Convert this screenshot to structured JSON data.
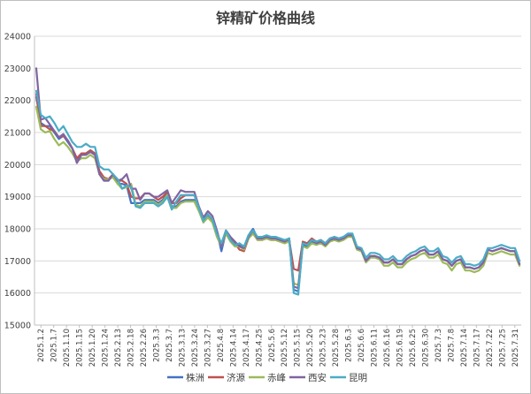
{
  "chart_data": {
    "type": "line",
    "title": "锌精矿价格曲线",
    "xlabel": "",
    "ylabel": "",
    "ylim": [
      15000,
      24000
    ],
    "yticks": [
      15000,
      16000,
      17000,
      18000,
      19000,
      20000,
      21000,
      22000,
      23000,
      24000
    ],
    "grid": "horizontal",
    "legend_position": "bottom",
    "x_tick_labels": [
      "2025.1.2",
      "2025.1.7",
      "2025.1.10",
      "2025.1.15",
      "2025.1.20",
      "2025.1.24",
      "2025.2.13",
      "2025.2.18",
      "2025.2.26",
      "2025.3.3",
      "2025.3.7",
      "2025.3.13",
      "2025.3.24",
      "2025.3.27",
      "2025.4.8",
      "2025.4.14",
      "2025.4.17",
      "2025.4.25",
      "2025.5.6",
      "2025.5.12",
      "2025.5.15",
      "2025.5.20",
      "2025.5.23",
      "2025.5.28",
      "2025.6.3",
      "2025.6.6",
      "2025.6.11",
      "2025.6.16",
      "2025.6.19",
      "2025.6.25",
      "2025.6.30",
      "2025.7.3",
      "2025.7.8",
      "2025.7.14",
      "2025.7.17",
      "2025.7.22",
      "2025.7.25",
      "2025.7.31"
    ],
    "series": [
      {
        "name": "株洲",
        "color": "#4472c4",
        "values": [
          22100,
          21300,
          21200,
          21200,
          21000,
          20800,
          20900,
          20700,
          20500,
          20100,
          20300,
          20300,
          20400,
          20300,
          19700,
          19500,
          19500,
          19700,
          19400,
          19400,
          19350,
          18800,
          18800,
          18800,
          18900,
          18900,
          18900,
          18800,
          18900,
          19100,
          18700,
          18700,
          18850,
          18900,
          18900,
          18900,
          18600,
          18200,
          18400,
          18300,
          17900,
          17300,
          17900,
          17700,
          17500,
          17500,
          17400,
          17800,
          18000,
          17700,
          17700,
          17750,
          17700,
          17700,
          17650,
          17600,
          17700,
          16100,
          16050,
          17500,
          17450,
          17600,
          17550,
          17600,
          17500,
          17650,
          17700,
          17650,
          17700,
          17800,
          17800,
          17400,
          17350,
          17000,
          17150,
          17150,
          17100,
          16950,
          16950,
          17050,
          16900,
          16900,
          17050,
          17150,
          17200,
          17300,
          17350,
          17200,
          17200,
          17300,
          17050,
          17000,
          16850,
          17000,
          17050,
          16800,
          16800,
          16750,
          16800,
          16950,
          17350,
          17300,
          17350,
          17400,
          17350,
          17300,
          17300,
          16900
        ]
      },
      {
        "name": "济源",
        "color": "#c0504d",
        "values": [
          22200,
          21200,
          21200,
          21100,
          21050,
          20850,
          20900,
          20750,
          20500,
          20200,
          20350,
          20350,
          20450,
          20350,
          19800,
          19600,
          19550,
          19700,
          19500,
          19500,
          19400,
          19000,
          18950,
          18950,
          19100,
          19100,
          19000,
          18900,
          19000,
          19150,
          18800,
          18800,
          18950,
          19050,
          19050,
          19050,
          18650,
          18300,
          18450,
          18250,
          17800,
          17550,
          17850,
          17700,
          17550,
          17350,
          17300,
          17700,
          17900,
          17650,
          17650,
          17700,
          17650,
          17650,
          17600,
          17550,
          17650,
          16750,
          16700,
          17600,
          17550,
          17700,
          17600,
          17650,
          17550,
          17700,
          17750,
          17700,
          17750,
          17800,
          17800,
          17400,
          17350,
          17000,
          17150,
          17150,
          17100,
          16950,
          16950,
          17050,
          16900,
          16900,
          17050,
          17150,
          17200,
          17300,
          17350,
          17200,
          17200,
          17300,
          17050,
          17000,
          16850,
          17000,
          17050,
          16800,
          16800,
          16750,
          16800,
          16950,
          17350,
          17300,
          17350,
          17400,
          17350,
          17300,
          17300,
          16900
        ]
      },
      {
        "name": "赤峰",
        "color": "#9bbb59",
        "values": [
          21800,
          21100,
          21000,
          21050,
          20800,
          20600,
          20700,
          20550,
          20350,
          20100,
          20200,
          20200,
          20300,
          20200,
          19700,
          19550,
          19550,
          19600,
          19400,
          19250,
          19300,
          19400,
          18750,
          18700,
          18850,
          18850,
          18850,
          18750,
          18850,
          19050,
          18650,
          18650,
          18800,
          18850,
          18850,
          18850,
          18550,
          18200,
          18350,
          18200,
          17750,
          17450,
          17850,
          17600,
          17450,
          17450,
          17350,
          17700,
          17850,
          17650,
          17650,
          17700,
          17650,
          17650,
          17600,
          17550,
          17600,
          16300,
          16250,
          17450,
          17400,
          17550,
          17500,
          17550,
          17450,
          17600,
          17650,
          17600,
          17650,
          17750,
          17750,
          17350,
          17300,
          16950,
          17100,
          17100,
          17050,
          16850,
          16850,
          16950,
          16800,
          16800,
          16950,
          17050,
          17100,
          17200,
          17250,
          17100,
          17100,
          17200,
          16950,
          16900,
          16700,
          16900,
          16950,
          16700,
          16700,
          16650,
          16700,
          16850,
          17250,
          17200,
          17250,
          17300,
          17250,
          17200,
          17200,
          16850
        ]
      },
      {
        "name": "西安",
        "color": "#8064a2",
        "values": [
          23000,
          21400,
          21450,
          21250,
          21050,
          20850,
          20950,
          20750,
          20500,
          20050,
          20300,
          20300,
          20400,
          20300,
          19700,
          19500,
          19500,
          19700,
          19500,
          19550,
          19700,
          19250,
          19250,
          18900,
          19100,
          19100,
          19000,
          19000,
          19100,
          19200,
          18800,
          19000,
          19200,
          19150,
          19150,
          19150,
          18700,
          18350,
          18550,
          18400,
          17950,
          17450,
          17950,
          17750,
          17600,
          17450,
          17400,
          17750,
          17950,
          17700,
          17700,
          17750,
          17700,
          17700,
          17650,
          17600,
          17700,
          16200,
          16150,
          17550,
          17500,
          17650,
          17550,
          17600,
          17500,
          17650,
          17700,
          17650,
          17700,
          17800,
          17800,
          17400,
          17350,
          17000,
          17150,
          17150,
          17100,
          16950,
          16950,
          17050,
          16900,
          16900,
          17050,
          17150,
          17200,
          17300,
          17350,
          17200,
          17200,
          17300,
          17050,
          17000,
          16850,
          17000,
          17050,
          16800,
          16800,
          16750,
          16800,
          16950,
          17350,
          17300,
          17350,
          17400,
          17350,
          17300,
          17300,
          16900
        ]
      },
      {
        "name": "昆明",
        "color": "#4bacc6",
        "values": [
          22300,
          21550,
          21450,
          21500,
          21300,
          21050,
          21200,
          20950,
          20700,
          20550,
          20550,
          20650,
          20550,
          20550,
          19950,
          19850,
          19850,
          19700,
          19550,
          19250,
          19350,
          19300,
          18700,
          18650,
          18800,
          18800,
          18800,
          18700,
          18800,
          19000,
          18600,
          18850,
          19050,
          19050,
          19050,
          19050,
          18650,
          18250,
          18450,
          18300,
          17850,
          17550,
          17950,
          17650,
          17500,
          17550,
          17450,
          17800,
          17950,
          17750,
          17750,
          17800,
          17750,
          17750,
          17700,
          17650,
          17700,
          16000,
          15950,
          17550,
          17500,
          17650,
          17600,
          17650,
          17550,
          17700,
          17750,
          17700,
          17750,
          17850,
          17850,
          17450,
          17400,
          17100,
          17250,
          17250,
          17200,
          17050,
          17050,
          17150,
          17000,
          17000,
          17150,
          17250,
          17300,
          17400,
          17450,
          17300,
          17300,
          17400,
          17150,
          17100,
          16950,
          17100,
          17150,
          16900,
          16900,
          16850,
          16900,
          17050,
          17400,
          17400,
          17450,
          17500,
          17450,
          17400,
          17400,
          17000
        ]
      }
    ]
  }
}
